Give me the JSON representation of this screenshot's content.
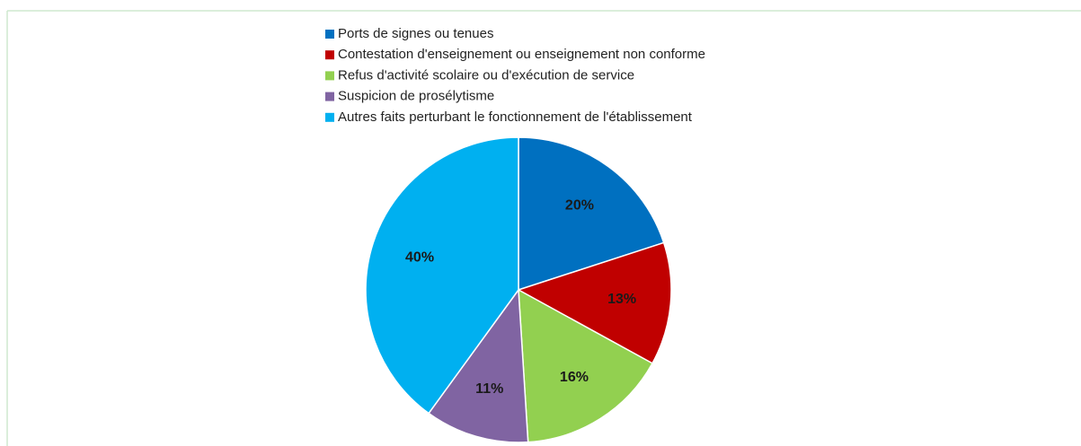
{
  "chart_data": {
    "type": "pie",
    "categories": [
      "Ports de signes ou tenues",
      "Contestation d'enseignement ou enseignement non conforme",
      "Refus d'activité scolaire ou d'exécution de service",
      "Suspicion de prosélytisme",
      "Autres faits perturbant le fonctionnement de l'établissement"
    ],
    "values": [
      20,
      13,
      16,
      11,
      40
    ],
    "value_labels": [
      "20%",
      "13%",
      "16%",
      "11%",
      "40%"
    ],
    "colors": [
      "#0070c0",
      "#c00000",
      "#92d050",
      "#8064a2",
      "#00b0f0"
    ]
  }
}
